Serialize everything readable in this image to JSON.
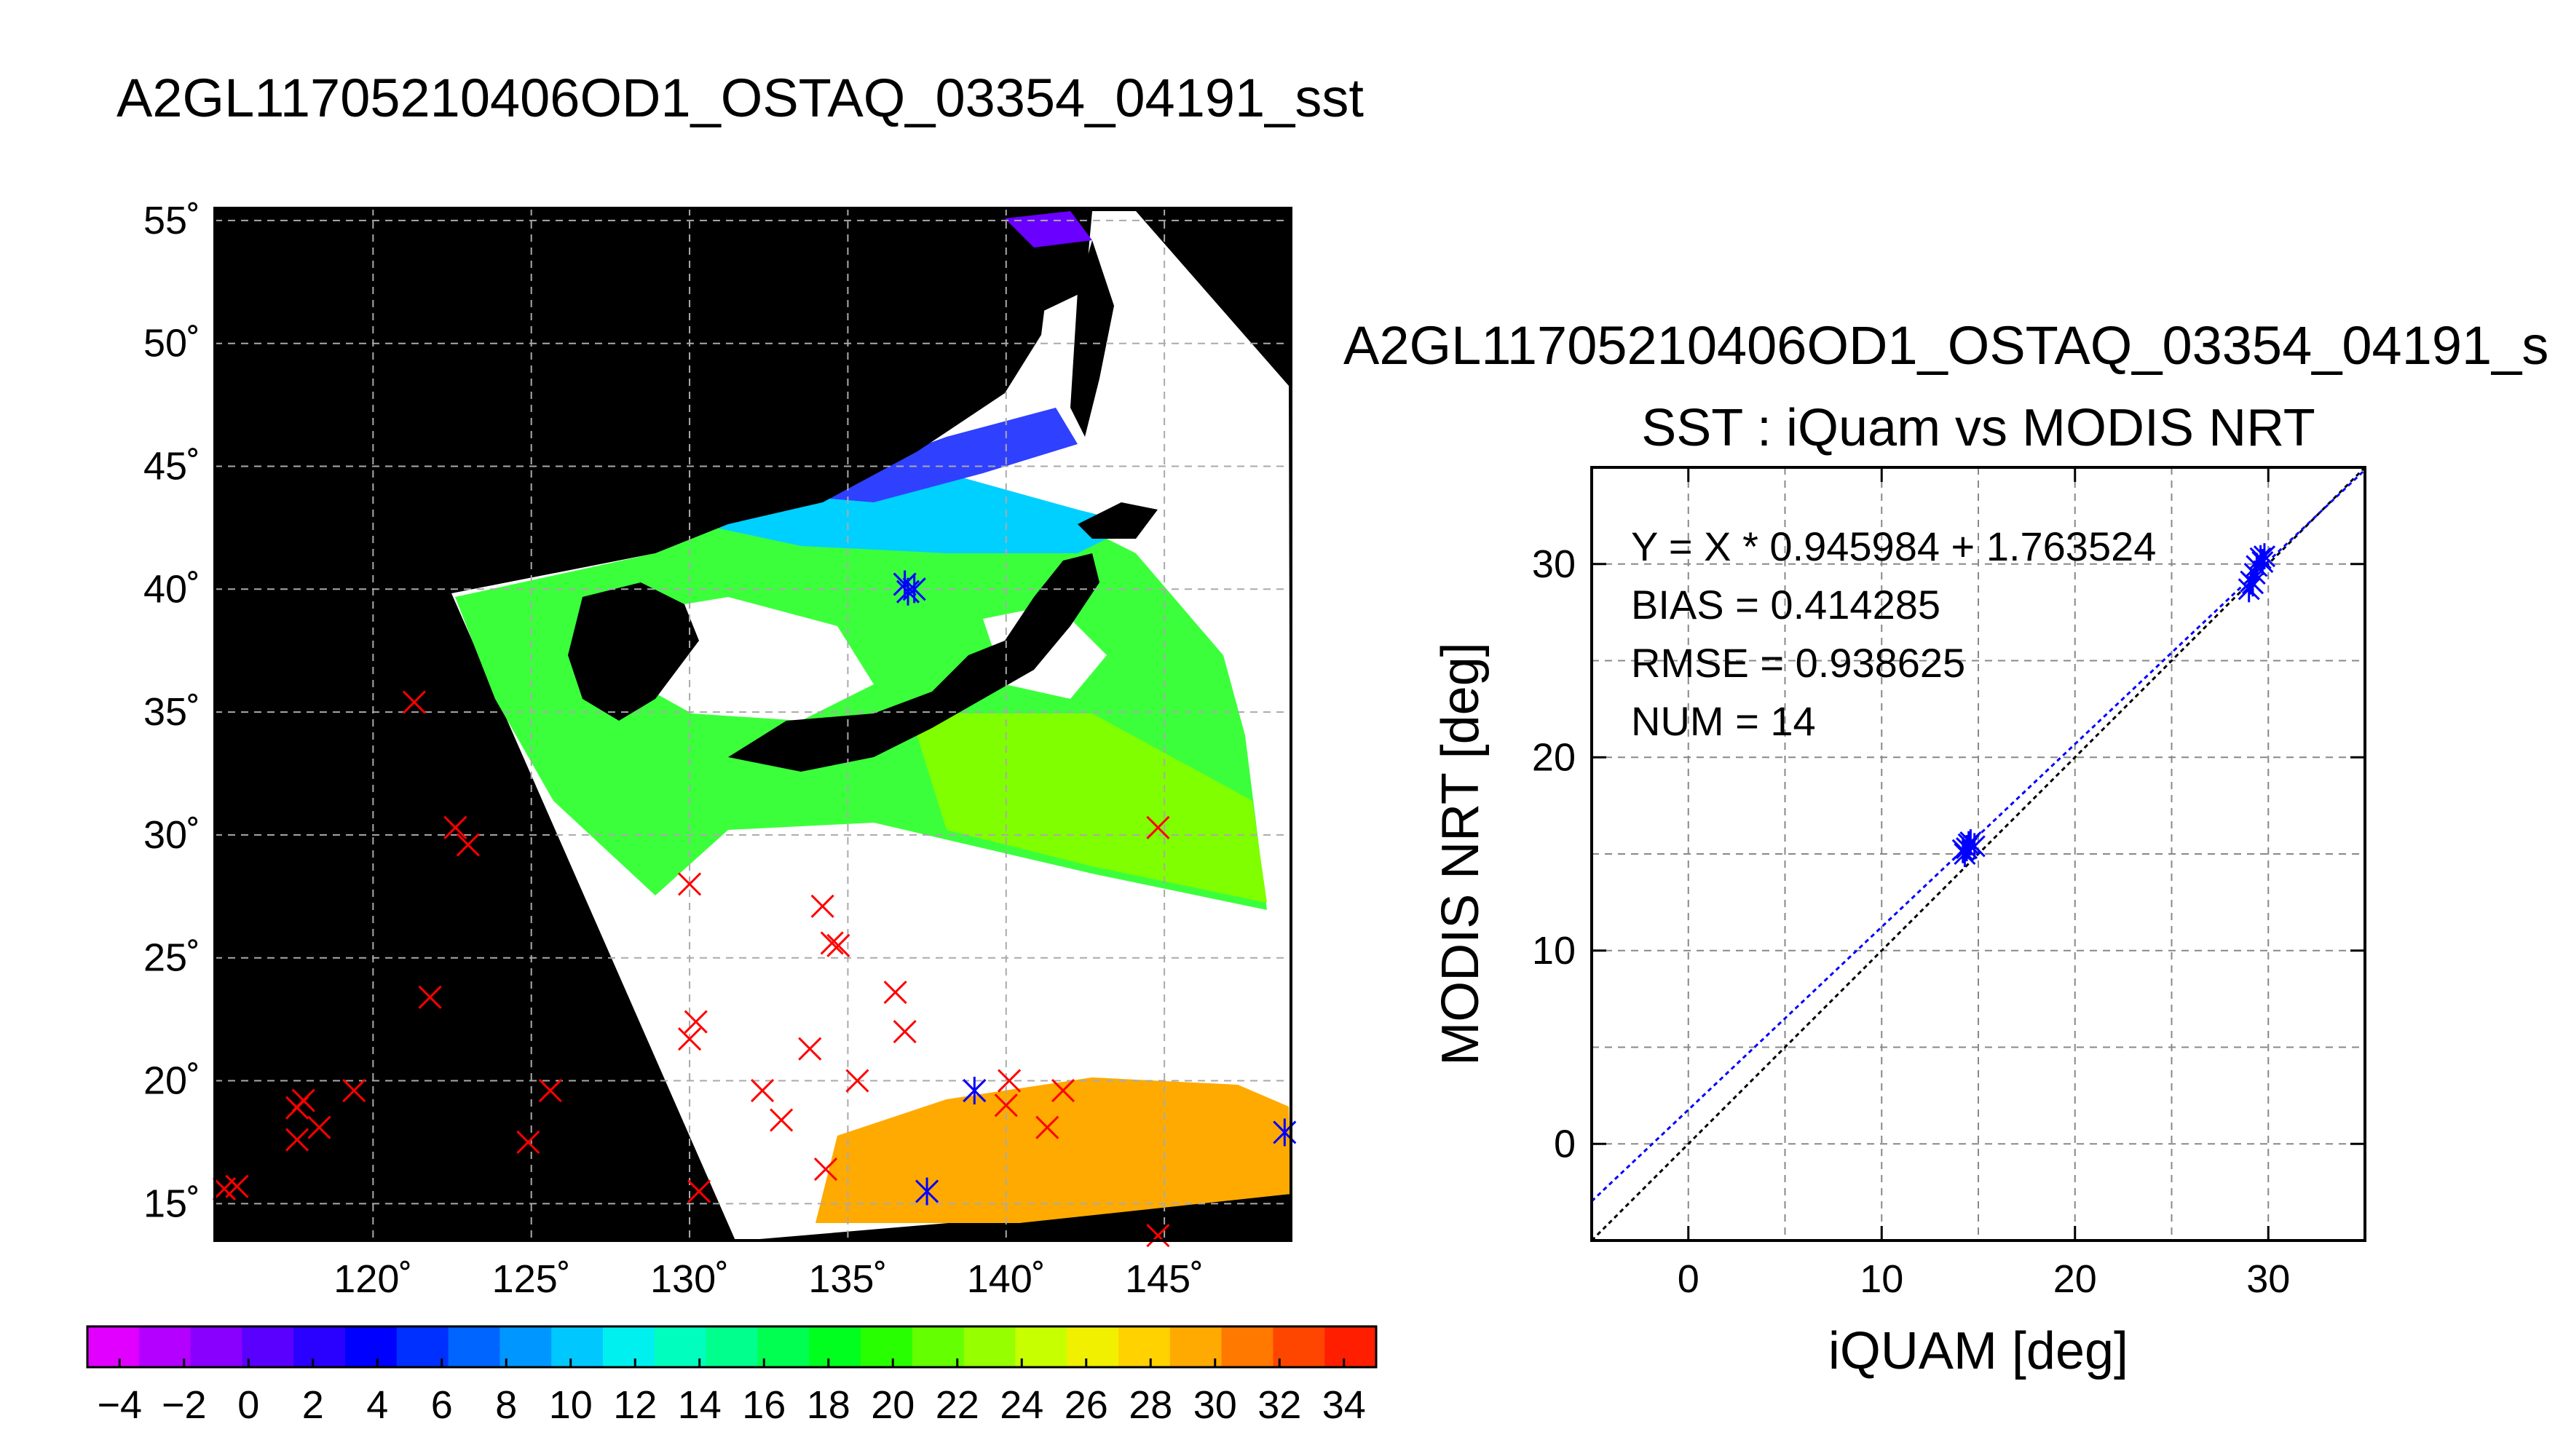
{
  "map": {
    "title": "A2GL11705210406OD1_OSTAQ_03354_04191_sst",
    "lon_range": [
      115,
      149
    ],
    "lat_range": [
      13.5,
      55.5
    ],
    "lon_ticks": [
      {
        "v": 120,
        "label": "120˚"
      },
      {
        "v": 125,
        "label": "125˚"
      },
      {
        "v": 130,
        "label": "130˚"
      },
      {
        "v": 135,
        "label": "135˚"
      },
      {
        "v": 140,
        "label": "140˚"
      },
      {
        "v": 145,
        "label": "145˚"
      }
    ],
    "lat_ticks": [
      {
        "v": 15,
        "label": "15˚"
      },
      {
        "v": 20,
        "label": "20˚"
      },
      {
        "v": 25,
        "label": "25˚"
      },
      {
        "v": 30,
        "label": "30˚"
      },
      {
        "v": 35,
        "label": "35˚"
      },
      {
        "v": 40,
        "label": "40˚"
      },
      {
        "v": 45,
        "label": "45˚"
      },
      {
        "v": 50,
        "label": "50˚"
      },
      {
        "v": 55,
        "label": "55˚"
      }
    ],
    "red_marks": [
      [
        121.3,
        35.4
      ],
      [
        122.6,
        30.3
      ],
      [
        123.0,
        29.6
      ],
      [
        121.8,
        23.4
      ],
      [
        117.8,
        19.2
      ],
      [
        117.6,
        18.9
      ],
      [
        117.6,
        17.6
      ],
      [
        118.3,
        18.1
      ],
      [
        119.4,
        19.6
      ],
      [
        115.3,
        15.6
      ],
      [
        115.7,
        15.7
      ],
      [
        124.9,
        17.5
      ],
      [
        125.6,
        19.6
      ],
      [
        130.0,
        28.0
      ],
      [
        130.0,
        21.7
      ],
      [
        130.2,
        22.4
      ],
      [
        130.3,
        15.5
      ],
      [
        132.3,
        19.6
      ],
      [
        132.9,
        18.4
      ],
      [
        133.8,
        21.3
      ],
      [
        134.2,
        27.1
      ],
      [
        134.5,
        25.6
      ],
      [
        134.7,
        25.5
      ],
      [
        134.3,
        16.4
      ],
      [
        135.3,
        20.0
      ],
      [
        136.5,
        23.6
      ],
      [
        136.8,
        22.0
      ],
      [
        139.0,
        19.6
      ],
      [
        140.1,
        20.0
      ],
      [
        140.0,
        19.0
      ],
      [
        141.3,
        18.1
      ],
      [
        141.8,
        19.6
      ],
      [
        144.8,
        30.3
      ],
      [
        144.8,
        13.7
      ]
    ],
    "blue_marks": [
      [
        136.8,
        40.2
      ],
      [
        136.9,
        39.9
      ],
      [
        137.1,
        40.0
      ],
      [
        137.5,
        15.5
      ],
      [
        139.0,
        19.6
      ],
      [
        148.8,
        17.9
      ]
    ],
    "colors": {
      "land_background": "#000000",
      "cloud": "#ffffff",
      "red_mark": "#ff0000",
      "blue_mark": "#0000ff"
    }
  },
  "colorbar": {
    "min": -5,
    "max": 35,
    "tick_labels": [
      "−4",
      "−2",
      "0",
      "2",
      "4",
      "6",
      "8",
      "10",
      "12",
      "14",
      "16",
      "18",
      "20",
      "22",
      "24",
      "26",
      "28",
      "30",
      "32",
      "34"
    ],
    "tick_values": [
      -4,
      -2,
      0,
      2,
      4,
      6,
      8,
      10,
      12,
      14,
      16,
      18,
      20,
      22,
      24,
      26,
      28,
      30,
      32,
      34
    ],
    "colors": [
      "#e100ff",
      "#b400ff",
      "#8a00ff",
      "#5a00ff",
      "#2a00ff",
      "#0000ff",
      "#0030ff",
      "#0064ff",
      "#0096ff",
      "#00c8ff",
      "#00f0f0",
      "#00ffbe",
      "#00ff8c",
      "#00ff50",
      "#00ff1e",
      "#28ff00",
      "#64ff00",
      "#96ff00",
      "#c8ff00",
      "#f0f000",
      "#ffd200",
      "#ffaa00",
      "#ff7800",
      "#ff4600",
      "#ff1e00"
    ]
  },
  "chart_data": {
    "type": "scatter",
    "title_top": "A2GL11705210406OD1_OSTAQ_03354_04191_s",
    "title": "SST : iQuam vs MODIS NRT",
    "xlabel": "iQUAM [deg]",
    "ylabel": "MODIS NRT [deg]",
    "xlim": [
      -5,
      35
    ],
    "ylim": [
      -5,
      35
    ],
    "ticks": [
      0,
      10,
      20,
      30
    ],
    "tick_labels": [
      "0",
      "10",
      "20",
      "30"
    ],
    "grid": true,
    "annotations": [
      "Y = X * 0.945984 + 1.763524",
      "BIAS = 0.414285",
      "RMSE = 0.938625",
      "NUM = 14"
    ],
    "fit": {
      "slope": 0.945984,
      "intercept": 1.763524
    },
    "points": [
      {
        "x": 14.2,
        "y": 15.2
      },
      {
        "x": 14.5,
        "y": 15.5
      },
      {
        "x": 14.8,
        "y": 15.4
      },
      {
        "x": 14.3,
        "y": 15.0
      },
      {
        "x": 14.6,
        "y": 15.6
      },
      {
        "x": 14.4,
        "y": 15.3
      },
      {
        "x": 29.0,
        "y": 28.7
      },
      {
        "x": 29.1,
        "y": 29.1
      },
      {
        "x": 29.2,
        "y": 29.0
      },
      {
        "x": 29.4,
        "y": 29.9
      },
      {
        "x": 29.6,
        "y": 30.3
      },
      {
        "x": 29.8,
        "y": 30.4
      },
      {
        "x": 29.7,
        "y": 30.1
      },
      {
        "x": 29.3,
        "y": 29.5
      }
    ],
    "colors": {
      "points": "#0000ff",
      "fit_line": "#0000ff",
      "identity_line": "#000000",
      "grid": "#888888"
    }
  }
}
